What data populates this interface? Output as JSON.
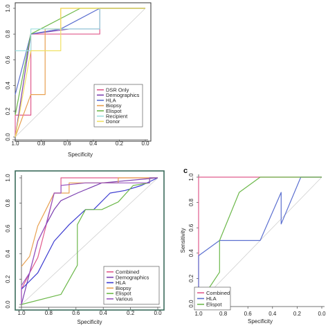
{
  "chart_data": [
    {
      "type": "line",
      "panel_label": "",
      "xlabel": "Specificity",
      "ylabel": "",
      "x_reversed": true,
      "xlim": [
        1.0,
        0.0
      ],
      "ylim": [
        0.0,
        1.0
      ],
      "x_ticks": [
        "1.0",
        "0.8",
        "0.6",
        "0.4",
        "0.2",
        "0.0"
      ],
      "y_ticks": [
        "0.0",
        "0.2",
        "0.4",
        "0.6",
        "0.8",
        "1.0"
      ],
      "legend_position": "bottom-right",
      "diagonal": true,
      "series": [
        {
          "name": "DSR Only",
          "color": "#e05a8c",
          "points": [
            [
              1.0,
              0.0
            ],
            [
              1.0,
              0.17
            ],
            [
              0.88,
              0.17
            ],
            [
              0.88,
              0.8
            ],
            [
              0.35,
              0.8
            ],
            [
              0.35,
              1.0
            ],
            [
              0.0,
              1.0
            ]
          ]
        },
        {
          "name": "Demographics",
          "color": "#7b3fb0",
          "points": [
            [
              1.0,
              0.0
            ],
            [
              0.88,
              0.8
            ],
            [
              0.58,
              0.84
            ],
            [
              0.35,
              0.84
            ],
            [
              0.35,
              1.0
            ],
            [
              0.0,
              1.0
            ]
          ]
        },
        {
          "name": "HLA",
          "color": "#5b6fd0",
          "points": [
            [
              1.0,
              0.33
            ],
            [
              0.88,
              0.8
            ],
            [
              0.65,
              0.84
            ],
            [
              0.35,
              1.0
            ],
            [
              0.0,
              1.0
            ]
          ]
        },
        {
          "name": "Biopsy",
          "color": "#e8a050",
          "points": [
            [
              1.0,
              0.0
            ],
            [
              0.88,
              0.33
            ],
            [
              0.77,
              0.33
            ],
            [
              0.77,
              0.84
            ],
            [
              0.65,
              0.84
            ],
            [
              0.65,
              1.0
            ],
            [
              0.0,
              1.0
            ]
          ]
        },
        {
          "name": "Elispot",
          "color": "#6cb84a",
          "points": [
            [
              1.0,
              0.17
            ],
            [
              0.88,
              0.8
            ],
            [
              0.5,
              1.0
            ],
            [
              0.0,
              1.0
            ]
          ]
        },
        {
          "name": "Recipient",
          "color": "#9fe0e0",
          "points": [
            [
              1.0,
              0.67
            ],
            [
              0.88,
              0.67
            ],
            [
              0.88,
              0.84
            ],
            [
              0.35,
              0.84
            ],
            [
              0.35,
              1.0
            ],
            [
              0.0,
              1.0
            ]
          ]
        },
        {
          "name": "Donor",
          "color": "#f0e060",
          "points": [
            [
              1.0,
              0.0
            ],
            [
              0.88,
              0.67
            ],
            [
              0.65,
              0.67
            ],
            [
              0.65,
              1.0
            ],
            [
              0.0,
              1.0
            ]
          ]
        }
      ]
    },
    {
      "type": "line",
      "panel_label": "",
      "xlabel": "Specificity",
      "ylabel": "",
      "x_reversed": true,
      "xlim": [
        1.0,
        0.0
      ],
      "ylim": [
        0.0,
        1.0
      ],
      "x_ticks": [
        "1.0",
        "0.8",
        "0.6",
        "0.4",
        "0.2",
        "0.0"
      ],
      "y_ticks": [
        "0.0",
        "0.2",
        "0.4",
        "0.6",
        "0.8",
        "1.0"
      ],
      "legend_position": "bottom-right",
      "diagonal": true,
      "series": [
        {
          "name": "Combined",
          "color": "#e05a8c",
          "points": [
            [
              1.0,
              0.0
            ],
            [
              1.0,
              0.12
            ],
            [
              0.94,
              0.25
            ],
            [
              0.88,
              0.37
            ],
            [
              0.82,
              0.62
            ],
            [
              0.76,
              0.88
            ],
            [
              0.71,
              0.88
            ],
            [
              0.71,
              1.0
            ],
            [
              0.0,
              1.0
            ]
          ]
        },
        {
          "name": "Demographics",
          "color": "#7b3fb0",
          "points": [
            [
              1.0,
              0.0
            ],
            [
              0.94,
              0.25
            ],
            [
              0.88,
              0.5
            ],
            [
              0.82,
              0.63
            ],
            [
              0.76,
              0.75
            ],
            [
              0.71,
              0.82
            ],
            [
              0.59,
              0.88
            ],
            [
              0.41,
              0.96
            ],
            [
              0.0,
              1.0
            ]
          ]
        },
        {
          "name": "HLA",
          "color": "#3a3ad0",
          "points": [
            [
              1.0,
              0.12
            ],
            [
              0.88,
              0.25
            ],
            [
              0.76,
              0.5
            ],
            [
              0.65,
              0.63
            ],
            [
              0.53,
              0.75
            ],
            [
              0.47,
              0.75
            ],
            [
              0.35,
              0.88
            ],
            [
              0.24,
              0.9
            ],
            [
              0.12,
              0.94
            ],
            [
              0.0,
              1.0
            ]
          ]
        },
        {
          "name": "Biopsy",
          "color": "#e8a050",
          "points": [
            [
              1.0,
              0.3
            ],
            [
              0.94,
              0.38
            ],
            [
              0.88,
              0.62
            ],
            [
              0.82,
              0.75
            ],
            [
              0.76,
              0.88
            ],
            [
              0.65,
              0.88
            ],
            [
              0.65,
              0.96
            ],
            [
              0.29,
              0.96
            ],
            [
              0.29,
              1.0
            ],
            [
              0.0,
              1.0
            ]
          ]
        },
        {
          "name": "Elispot",
          "color": "#6cb84a",
          "points": [
            [
              1.0,
              0.0
            ],
            [
              0.71,
              0.08
            ],
            [
              0.59,
              0.31
            ],
            [
              0.59,
              0.63
            ],
            [
              0.53,
              0.75
            ],
            [
              0.41,
              0.75
            ],
            [
              0.29,
              0.81
            ],
            [
              0.18,
              0.94
            ],
            [
              0.06,
              0.96
            ],
            [
              0.06,
              1.0
            ],
            [
              0.0,
              1.0
            ]
          ]
        },
        {
          "name": "Various",
          "color": "#9a55c0",
          "points": [
            [
              1.0,
              0.0
            ],
            [
              1.0,
              0.15
            ],
            [
              0.94,
              0.25
            ],
            [
              0.88,
              0.5
            ],
            [
              0.82,
              0.63
            ],
            [
              0.76,
              0.88
            ],
            [
              0.71,
              0.88
            ],
            [
              0.71,
              0.94
            ],
            [
              0.53,
              0.96
            ],
            [
              0.06,
              0.96
            ],
            [
              0.06,
              1.0
            ],
            [
              0.0,
              1.0
            ]
          ]
        }
      ]
    },
    {
      "type": "line",
      "panel_label": "c",
      "xlabel": "Specificity",
      "ylabel": "Sensitivity",
      "x_reversed": true,
      "xlim": [
        1.0,
        0.0
      ],
      "ylim": [
        0.0,
        1.0
      ],
      "x_ticks": [
        "1.0",
        "0.8",
        "0.6",
        "0.4",
        "0.2",
        "0.0"
      ],
      "y_ticks": [
        "0.0",
        "0.2",
        "0.4",
        "0.6",
        "0.8",
        "1.0"
      ],
      "legend_position": "bottom-left",
      "diagonal": true,
      "series": [
        {
          "name": "Combined",
          "color": "#e05a8c",
          "points": [
            [
              1.0,
              0.0
            ],
            [
              1.0,
              1.0
            ],
            [
              0.0,
              1.0
            ]
          ]
        },
        {
          "name": "HLA",
          "color": "#5b6fd0",
          "points": [
            [
              1.0,
              0.0
            ],
            [
              1.0,
              0.38
            ],
            [
              0.83,
              0.5
            ],
            [
              0.5,
              0.5
            ],
            [
              0.33,
              0.88
            ],
            [
              0.33,
              0.63
            ],
            [
              0.17,
              1.0
            ],
            [
              0.0,
              1.0
            ]
          ]
        },
        {
          "name": "Elispot",
          "color": "#6cb84a",
          "points": [
            [
              1.0,
              0.0
            ],
            [
              0.83,
              0.25
            ],
            [
              0.83,
              0.5
            ],
            [
              0.67,
              0.88
            ],
            [
              0.5,
              1.0
            ],
            [
              0.0,
              1.0
            ]
          ]
        }
      ]
    }
  ]
}
